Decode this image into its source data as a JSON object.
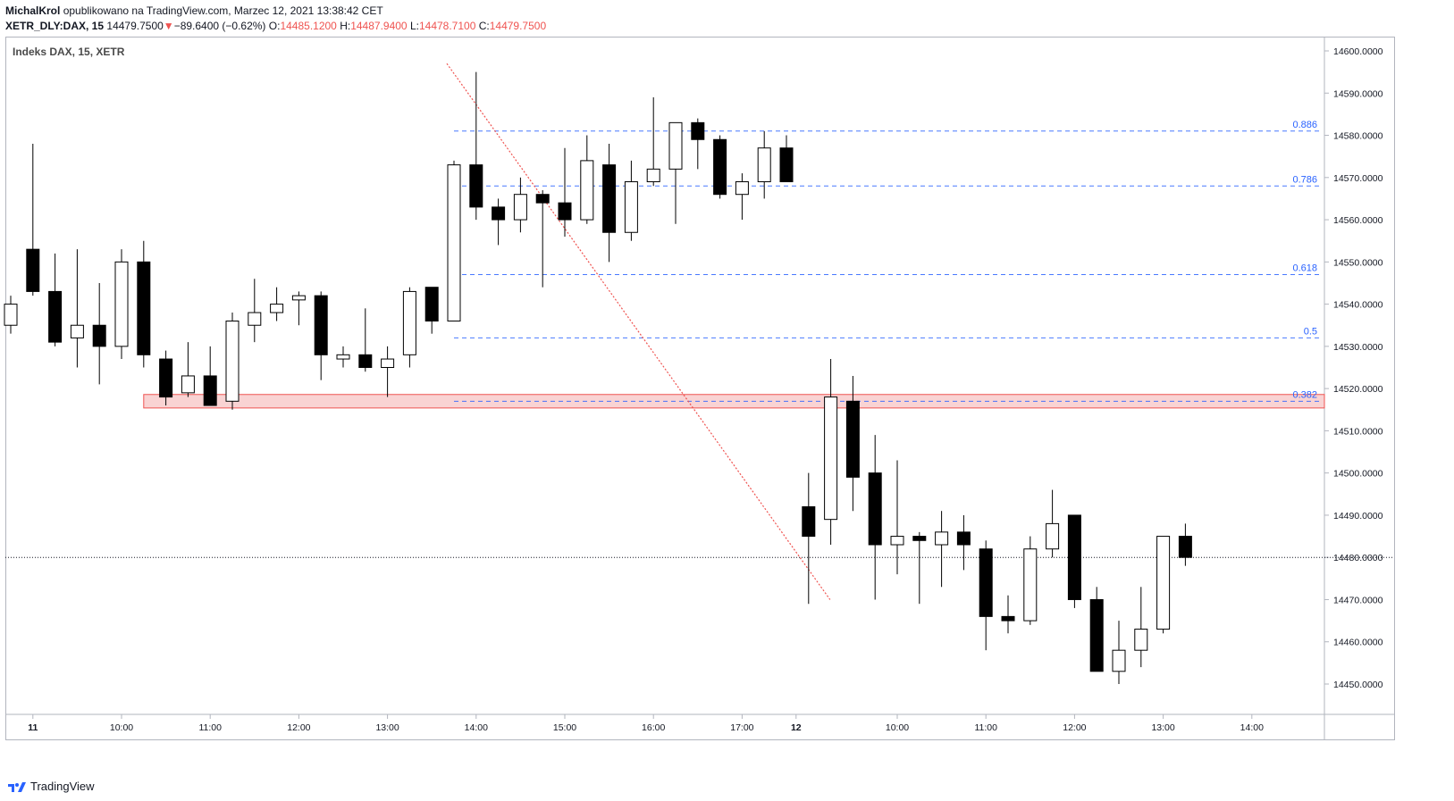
{
  "header": {
    "author": "MichalKrol",
    "published": "opublikowano na TradingView.com, Marzec 12, 2021 13:38:42 CET",
    "symbol": "XETR_DLY:DAX, 15",
    "price": "14479.7500",
    "change_arrow": "▼",
    "change": "−89.6400 (−0.62%)",
    "o_label": "O:",
    "o_value": "14485.1200",
    "h_label": "H:",
    "h_value": "14487.9400",
    "l_label": "L:",
    "l_value": "14478.7100",
    "c_label": "C:",
    "c_value": "14479.7500"
  },
  "footer": {
    "brand": "TradingView",
    "logo_icon": "tradingview-logo-icon"
  },
  "colors": {
    "bull_body": "#ffffff",
    "bear_body": "#000000",
    "fib": "#2962ff",
    "zone_fill": "#f8c8c8",
    "zone_stroke": "#ef5350",
    "trendline": "#ef5350",
    "price_line": "#131722"
  },
  "chart_data": {
    "type": "candlestick",
    "title": "Indeks DAX, 15, XETR",
    "ylim": [
      14442,
      14605
    ],
    "y_ticks": [
      14450,
      14460,
      14470,
      14480,
      14490,
      14500,
      14510,
      14520,
      14530,
      14540,
      14550,
      14560,
      14570,
      14580,
      14590,
      14600
    ],
    "x_ticks": [
      "11",
      "10:00",
      "11:00",
      "12:00",
      "13:00",
      "14:00",
      "15:00",
      "16:00",
      "17:00",
      "12",
      "10:00",
      "11:00",
      "12:00",
      "13:00",
      "14:00"
    ],
    "x_tick_slots": [
      1,
      5,
      9,
      13,
      17,
      21,
      25,
      29,
      33,
      36,
      40,
      44,
      48,
      52,
      56
    ],
    "candles": [
      {
        "slot": 0,
        "o": 14535,
        "h": 14542,
        "l": 14533,
        "c": 14540
      },
      {
        "slot": 1,
        "o": 14553,
        "h": 14578,
        "l": 14542,
        "c": 14543
      },
      {
        "slot": 2,
        "o": 14543,
        "h": 14552,
        "l": 14530,
        "c": 14531
      },
      {
        "slot": 3,
        "o": 14532,
        "h": 14553,
        "l": 14525,
        "c": 14535
      },
      {
        "slot": 4,
        "o": 14535,
        "h": 14545,
        "l": 14521,
        "c": 14530
      },
      {
        "slot": 5,
        "o": 14530,
        "h": 14553,
        "l": 14527,
        "c": 14550
      },
      {
        "slot": 6,
        "o": 14550,
        "h": 14555,
        "l": 14525,
        "c": 14528
      },
      {
        "slot": 7,
        "o": 14527,
        "h": 14529,
        "l": 14516,
        "c": 14518
      },
      {
        "slot": 8,
        "o": 14519,
        "h": 14531,
        "l": 14518,
        "c": 14523
      },
      {
        "slot": 9,
        "o": 14523,
        "h": 14530,
        "l": 14516,
        "c": 14516
      },
      {
        "slot": 10,
        "o": 14517,
        "h": 14538,
        "l": 14515,
        "c": 14536
      },
      {
        "slot": 11,
        "o": 14535,
        "h": 14546,
        "l": 14531,
        "c": 14538
      },
      {
        "slot": 12,
        "o": 14538,
        "h": 14544,
        "l": 14536,
        "c": 14540
      },
      {
        "slot": 13,
        "o": 14541,
        "h": 14543,
        "l": 14535,
        "c": 14542
      },
      {
        "slot": 14,
        "o": 14542,
        "h": 14543,
        "l": 14522,
        "c": 14528
      },
      {
        "slot": 15,
        "o": 14527,
        "h": 14530,
        "l": 14525,
        "c": 14528
      },
      {
        "slot": 16,
        "o": 14528,
        "h": 14539,
        "l": 14524,
        "c": 14525
      },
      {
        "slot": 17,
        "o": 14525,
        "h": 14530,
        "l": 14518,
        "c": 14527
      },
      {
        "slot": 18,
        "o": 14528,
        "h": 14544,
        "l": 14525,
        "c": 14543
      },
      {
        "slot": 19,
        "o": 14544,
        "h": 14544,
        "l": 14533,
        "c": 14536
      },
      {
        "slot": 20,
        "o": 14536,
        "h": 14574,
        "l": 14536,
        "c": 14573
      },
      {
        "slot": 21,
        "o": 14573,
        "h": 14595,
        "l": 14560,
        "c": 14563
      },
      {
        "slot": 22,
        "o": 14563,
        "h": 14565,
        "l": 14554,
        "c": 14560
      },
      {
        "slot": 23,
        "o": 14560,
        "h": 14570,
        "l": 14557,
        "c": 14566
      },
      {
        "slot": 24,
        "o": 14566,
        "h": 14567,
        "l": 14544,
        "c": 14564
      },
      {
        "slot": 25,
        "o": 14564,
        "h": 14577,
        "l": 14556,
        "c": 14560
      },
      {
        "slot": 26,
        "o": 14560,
        "h": 14580,
        "l": 14559,
        "c": 14574
      },
      {
        "slot": 27,
        "o": 14573,
        "h": 14578,
        "l": 14550,
        "c": 14557
      },
      {
        "slot": 28,
        "o": 14557,
        "h": 14574,
        "l": 14555,
        "c": 14569
      },
      {
        "slot": 29,
        "o": 14569,
        "h": 14589,
        "l": 14568,
        "c": 14572
      },
      {
        "slot": 30,
        "o": 14572,
        "h": 14583,
        "l": 14559,
        "c": 14583
      },
      {
        "slot": 31,
        "o": 14583,
        "h": 14584,
        "l": 14572,
        "c": 14579
      },
      {
        "slot": 32,
        "o": 14579,
        "h": 14580,
        "l": 14565,
        "c": 14566
      },
      {
        "slot": 33,
        "o": 14566,
        "h": 14571,
        "l": 14560,
        "c": 14569
      },
      {
        "slot": 34,
        "o": 14569,
        "h": 14581,
        "l": 14565,
        "c": 14577
      },
      {
        "slot": 35,
        "o": 14577,
        "h": 14580,
        "l": 14569,
        "c": 14569
      },
      {
        "slot": 36,
        "o": 14492,
        "h": 14500,
        "l": 14469,
        "c": 14485
      },
      {
        "slot": 37,
        "o": 14489,
        "h": 14527,
        "l": 14483,
        "c": 14518
      },
      {
        "slot": 38,
        "o": 14517,
        "h": 14523,
        "l": 14491,
        "c": 14499
      },
      {
        "slot": 39,
        "o": 14500,
        "h": 14509,
        "l": 14470,
        "c": 14483
      },
      {
        "slot": 40,
        "o": 14483,
        "h": 14503,
        "l": 14476,
        "c": 14485
      },
      {
        "slot": 41,
        "o": 14485,
        "h": 14486,
        "l": 14469,
        "c": 14484
      },
      {
        "slot": 42,
        "o": 14483,
        "h": 14491,
        "l": 14473,
        "c": 14486
      },
      {
        "slot": 43,
        "o": 14486,
        "h": 14490,
        "l": 14477,
        "c": 14483
      },
      {
        "slot": 44,
        "o": 14482,
        "h": 14484,
        "l": 14458,
        "c": 14466
      },
      {
        "slot": 45,
        "o": 14466,
        "h": 14471,
        "l": 14462,
        "c": 14465
      },
      {
        "slot": 46,
        "o": 14465,
        "h": 14485,
        "l": 14464,
        "c": 14482
      },
      {
        "slot": 47,
        "o": 14482,
        "h": 14496,
        "l": 14480,
        "c": 14488
      },
      {
        "slot": 48,
        "o": 14490,
        "h": 14490,
        "l": 14468,
        "c": 14470
      },
      {
        "slot": 49,
        "o": 14470,
        "h": 14473,
        "l": 14453,
        "c": 14453
      },
      {
        "slot": 50,
        "o": 14453,
        "h": 14465,
        "l": 14450,
        "c": 14458
      },
      {
        "slot": 51,
        "o": 14458,
        "h": 14473,
        "l": 14454,
        "c": 14463
      },
      {
        "slot": 52,
        "o": 14463,
        "h": 14485,
        "l": 14462,
        "c": 14485
      },
      {
        "slot": 53,
        "o": 14485,
        "h": 14488,
        "l": 14478,
        "c": 14480
      }
    ],
    "fib_levels": [
      {
        "label": "0.886",
        "value": 14581
      },
      {
        "label": "0.786",
        "value": 14568
      },
      {
        "label": "0.618",
        "value": 14547
      },
      {
        "label": "0.5",
        "value": 14532
      },
      {
        "label": "0.382",
        "value": 14517
      }
    ],
    "fib_start_slot": 20,
    "support_zone": {
      "low": 14516,
      "high": 14518,
      "start_slot": 6
    },
    "trendline": {
      "from": {
        "slot": 20,
        "value": 14597
      },
      "to": {
        "slot": 36,
        "value": 14470
      }
    },
    "last_price_line": 14480
  }
}
